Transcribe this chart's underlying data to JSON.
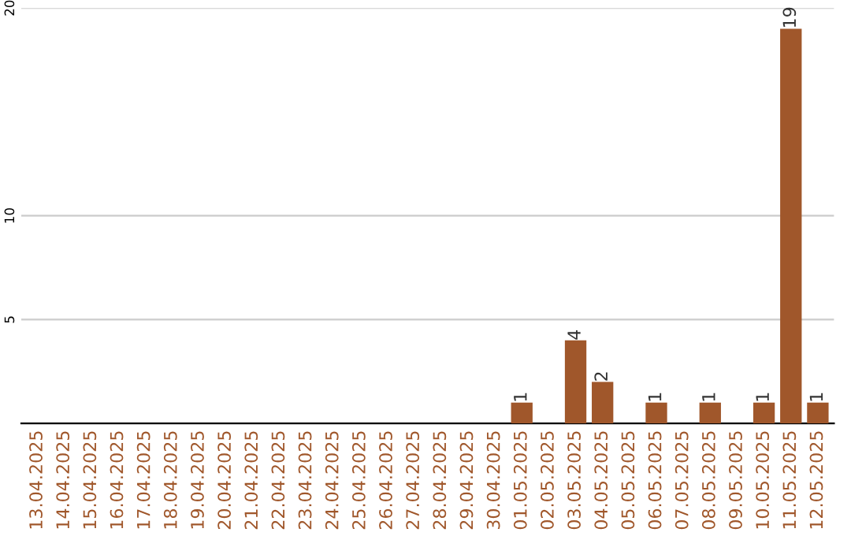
{
  "chart_data": {
    "type": "bar",
    "categories": [
      "13.04.2025",
      "14.04.2025",
      "15.04.2025",
      "16.04.2025",
      "17.04.2025",
      "18.04.2025",
      "19.04.2025",
      "20.04.2025",
      "21.04.2025",
      "22.04.2025",
      "23.04.2025",
      "24.04.2025",
      "25.04.2025",
      "26.04.2025",
      "27.04.2025",
      "28.04.2025",
      "29.04.2025",
      "30.04.2025",
      "01.05.2025",
      "02.05.2025",
      "03.05.2025",
      "04.05.2025",
      "05.05.2025",
      "06.05.2025",
      "07.05.2025",
      "08.05.2025",
      "09.05.2025",
      "10.05.2025",
      "11.05.2025",
      "12.05.2025"
    ],
    "values": [
      0,
      0,
      0,
      0,
      0,
      0,
      0,
      0,
      0,
      0,
      0,
      0,
      0,
      0,
      0,
      0,
      0,
      0,
      1,
      0,
      4,
      2,
      0,
      1,
      0,
      1,
      0,
      1,
      19,
      1
    ],
    "value_labels": [
      null,
      null,
      null,
      null,
      null,
      null,
      null,
      null,
      null,
      null,
      null,
      null,
      null,
      null,
      null,
      null,
      null,
      null,
      "1",
      null,
      "4",
      "2",
      null,
      "1",
      null,
      "1",
      null,
      "1",
      "19",
      "1"
    ],
    "color": "#a0572b",
    "ylim": [
      0,
      20
    ],
    "yticks": [
      5,
      10,
      20
    ],
    "grid": "y"
  }
}
